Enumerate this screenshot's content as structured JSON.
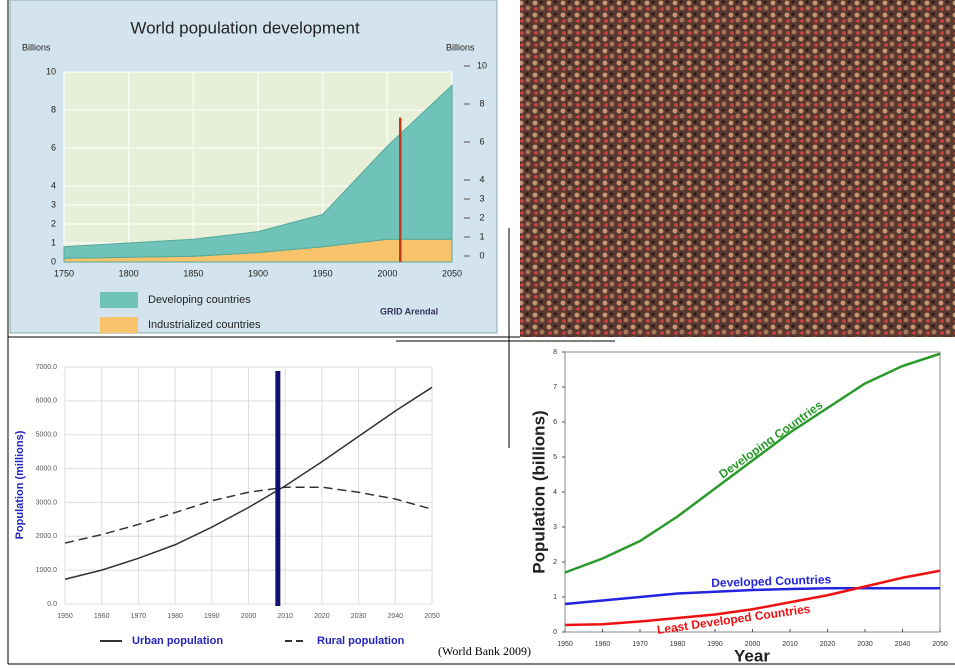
{
  "chart_data": [
    {
      "type": "area",
      "title": "World population development",
      "ylabel": "Billions",
      "y2label": "Billions",
      "x": [
        1750,
        1800,
        1850,
        1900,
        1950,
        2000,
        2050
      ],
      "series": [
        {
          "name": "Industrialized countries",
          "color": "#f7c46c",
          "values": [
            0.2,
            0.25,
            0.3,
            0.5,
            0.8,
            1.2,
            1.2
          ]
        },
        {
          "name": "Developing countries",
          "color": "#6fc3b8",
          "values": [
            0.6,
            0.75,
            0.9,
            1.1,
            1.7,
            4.9,
            8.1
          ]
        }
      ],
      "xlim": [
        1750,
        2050
      ],
      "xticks": [
        1750,
        1800,
        1850,
        1900,
        1950,
        2000,
        2050
      ],
      "ylim": [
        0,
        10
      ],
      "yticks": [
        0,
        1,
        2,
        3,
        4,
        6,
        8,
        10
      ],
      "y2lim": [
        0,
        10
      ],
      "y2ticks": [
        0,
        1,
        2,
        3,
        4,
        6,
        8,
        10
      ],
      "grid": true,
      "vline": 2010,
      "vline_color": "#c0391b",
      "credit": "GRID Arendal"
    },
    {
      "type": "line",
      "ylabel": "Population (millions)",
      "x": [
        1950,
        1960,
        1970,
        1980,
        1990,
        2000,
        2010,
        2020,
        2030,
        2040,
        2050
      ],
      "series": [
        {
          "name": "Urban population",
          "color": "#333333",
          "dash": false,
          "values": [
            730,
            1000,
            1350,
            1750,
            2270,
            2850,
            3490,
            4200,
            4950,
            5700,
            6400
          ]
        },
        {
          "name": "Rural population",
          "color": "#333333",
          "dash": true,
          "values": [
            1800,
            2050,
            2350,
            2700,
            3050,
            3300,
            3450,
            3450,
            3300,
            3100,
            2800
          ]
        }
      ],
      "xlim": [
        1950,
        2050
      ],
      "xticks": [
        1950,
        1960,
        1970,
        1980,
        1990,
        2000,
        2010,
        2020,
        2030,
        2040,
        2050
      ],
      "ylim": [
        0,
        7000
      ],
      "yticks": [
        {
          "value": 0,
          "label": "0.0"
        },
        {
          "value": 1000,
          "label": "1000.0"
        },
        {
          "value": 2000,
          "label": "2000.0"
        },
        {
          "value": 3000,
          "label": "3000.0"
        },
        {
          "value": 4000,
          "label": "4000.0"
        },
        {
          "value": 5000,
          "label": "5000.0"
        },
        {
          "value": 6000,
          "label": "6000.0"
        },
        {
          "value": 7000,
          "label": "7000.0"
        }
      ],
      "grid": true,
      "vline": 2008,
      "vline_color": "#10106e",
      "source": "(World Bank 2009)"
    },
    {
      "type": "line",
      "ylabel": "Population (billions)",
      "xlabel": "Year",
      "x": [
        1950,
        1960,
        1970,
        1980,
        1990,
        2000,
        2010,
        2020,
        2030,
        2040,
        2050
      ],
      "series": [
        {
          "name": "Developing Countries",
          "color": "#2a9a2a",
          "values": [
            1.7,
            2.1,
            2.6,
            3.3,
            4.1,
            4.9,
            5.7,
            6.4,
            7.1,
            7.6,
            7.95
          ]
        },
        {
          "name": "Developed Countries",
          "color": "#2424e0",
          "values": [
            0.8,
            0.9,
            1.0,
            1.1,
            1.15,
            1.2,
            1.23,
            1.25,
            1.25,
            1.25,
            1.25
          ]
        },
        {
          "name": "Least Developed Countries",
          "color": "#ee1111",
          "values": [
            0.2,
            0.22,
            0.3,
            0.4,
            0.5,
            0.65,
            0.85,
            1.05,
            1.3,
            1.55,
            1.75
          ]
        }
      ],
      "xlim": [
        1950,
        2050
      ],
      "xticks": [
        1950,
        1960,
        1970,
        1980,
        1990,
        2000,
        2010,
        2020,
        2030,
        2040,
        2050
      ],
      "ylim": [
        0,
        8
      ],
      "yticks": [
        0,
        1,
        2,
        3,
        4,
        5,
        6,
        7,
        8
      ],
      "grid": false
    }
  ]
}
